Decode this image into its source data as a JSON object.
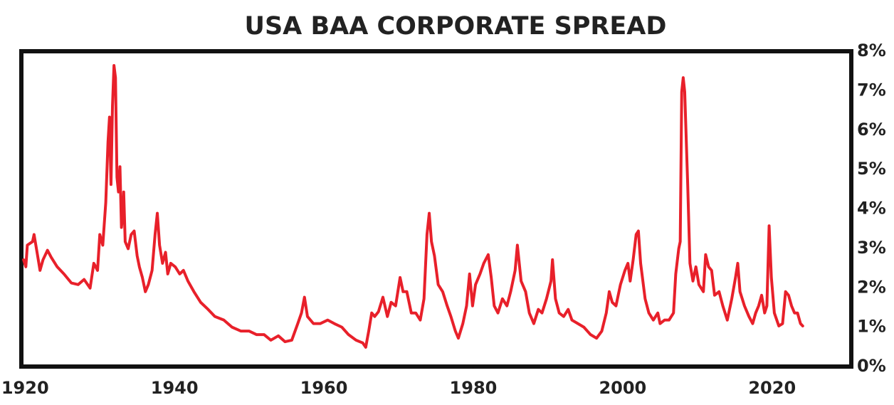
{
  "chart_data": {
    "type": "line",
    "title": "USA BAA CORPORATE SPREAD",
    "x": [
      1919.8,
      1920.1,
      1920.3,
      1921.0,
      1921.2,
      1921.6,
      1922.0,
      1922.4,
      1923.0,
      1923.5,
      1924.3,
      1925.2,
      1926.2,
      1927.1,
      1927.9,
      1928.7,
      1929.2,
      1929.7,
      1930.0,
      1930.4,
      1930.8,
      1931.1,
      1931.3,
      1931.5,
      1931.7,
      1931.9,
      1932.1,
      1932.3,
      1932.5,
      1932.7,
      1932.9,
      1933.1,
      1933.2,
      1933.4,
      1933.8,
      1934.2,
      1934.6,
      1935.0,
      1935.3,
      1935.7,
      1936.1,
      1936.5,
      1937.0,
      1937.4,
      1937.7,
      1938.0,
      1938.4,
      1938.8,
      1939.1,
      1939.5,
      1940.1,
      1940.7,
      1941.2,
      1941.8,
      1942.6,
      1943.5,
      1944.5,
      1945.4,
      1946.6,
      1947.7,
      1948.9,
      1950.0,
      1951.0,
      1952.0,
      1952.9,
      1953.9,
      1954.8,
      1955.7,
      1956.5,
      1957.0,
      1957.4,
      1957.8,
      1958.6,
      1959.5,
      1960.5,
      1961.4,
      1962.4,
      1963.3,
      1964.3,
      1965.2,
      1965.6,
      1966.0,
      1966.4,
      1966.8,
      1967.3,
      1967.9,
      1968.5,
      1969.0,
      1969.6,
      1970.2,
      1970.6,
      1971.1,
      1971.7,
      1972.3,
      1972.9,
      1973.4,
      1973.8,
      1974.1,
      1974.4,
      1974.8,
      1975.3,
      1975.9,
      1976.5,
      1977.0,
      1977.6,
      1978.0,
      1978.6,
      1979.1,
      1979.5,
      1979.9,
      1980.3,
      1980.9,
      1981.4,
      1982.0,
      1982.4,
      1982.8,
      1983.3,
      1983.9,
      1984.5,
      1985.0,
      1985.6,
      1985.9,
      1986.4,
      1987.0,
      1987.5,
      1988.1,
      1988.7,
      1989.2,
      1989.8,
      1990.4,
      1990.6,
      1991.0,
      1991.5,
      1992.1,
      1992.7,
      1993.2,
      1994.0,
      1994.8,
      1995.7,
      1996.5,
      1997.2,
      1997.8,
      1998.2,
      1998.6,
      1999.1,
      1999.7,
      2000.3,
      2000.7,
      2001.0,
      2001.4,
      2001.8,
      2002.1,
      2002.4,
      2003.0,
      2003.5,
      2004.1,
      2004.7,
      2005.0,
      2005.6,
      2006.2,
      2006.8,
      2007.1,
      2007.5,
      2007.7,
      2007.9,
      2008.1,
      2008.3,
      2008.7,
      2009.0,
      2009.4,
      2009.8,
      2010.2,
      2010.8,
      2011.1,
      2011.5,
      2011.9,
      2012.3,
      2012.9,
      2013.4,
      2014.0,
      2014.6,
      2015.1,
      2015.4,
      2015.7,
      2016.3,
      2016.9,
      2017.4,
      2017.8,
      2018.2,
      2018.6,
      2019.0,
      2019.3,
      2019.6,
      2019.9,
      2020.3,
      2020.9,
      2021.4,
      2021.8,
      2022.2,
      2022.6,
      2023.0,
      2023.4,
      2023.8,
      2024.1
    ],
    "values": [
      2.71,
      2.53,
      3.08,
      3.17,
      3.35,
      2.9,
      2.44,
      2.71,
      2.95,
      2.77,
      2.53,
      2.35,
      2.12,
      2.08,
      2.21,
      1.99,
      2.62,
      2.44,
      3.35,
      3.08,
      4.16,
      5.7,
      6.33,
      4.62,
      6.61,
      7.64,
      7.33,
      4.8,
      4.43,
      5.07,
      3.53,
      3.89,
      4.43,
      3.17,
      2.99,
      3.35,
      3.44,
      2.81,
      2.53,
      2.26,
      1.9,
      2.08,
      2.44,
      3.35,
      3.89,
      3.08,
      2.62,
      2.9,
      2.35,
      2.62,
      2.53,
      2.35,
      2.44,
      2.17,
      1.9,
      1.63,
      1.45,
      1.27,
      1.18,
      1.0,
      0.9,
      0.9,
      0.81,
      0.81,
      0.67,
      0.78,
      0.63,
      0.67,
      1.09,
      1.36,
      1.76,
      1.27,
      1.09,
      1.09,
      1.18,
      1.09,
      1.0,
      0.81,
      0.67,
      0.6,
      0.49,
      0.9,
      1.36,
      1.27,
      1.39,
      1.76,
      1.27,
      1.63,
      1.54,
      2.26,
      1.9,
      1.9,
      1.36,
      1.36,
      1.18,
      1.72,
      3.35,
      3.89,
      3.17,
      2.81,
      2.08,
      1.9,
      1.54,
      1.27,
      0.9,
      0.72,
      1.09,
      1.54,
      2.35,
      1.54,
      2.08,
      2.35,
      2.62,
      2.84,
      2.26,
      1.54,
      1.36,
      1.72,
      1.54,
      1.9,
      2.44,
      3.08,
      2.17,
      1.9,
      1.36,
      1.09,
      1.45,
      1.36,
      1.72,
      2.17,
      2.71,
      1.72,
      1.36,
      1.27,
      1.45,
      1.18,
      1.09,
      1.0,
      0.81,
      0.72,
      0.9,
      1.36,
      1.9,
      1.63,
      1.54,
      2.08,
      2.44,
      2.62,
      2.17,
      2.71,
      3.35,
      3.44,
      2.62,
      1.72,
      1.36,
      1.18,
      1.36,
      1.09,
      1.18,
      1.18,
      1.36,
      2.35,
      2.99,
      3.17,
      6.97,
      7.33,
      6.97,
      4.62,
      2.62,
      2.17,
      2.53,
      2.08,
      1.9,
      2.84,
      2.53,
      2.44,
      1.81,
      1.9,
      1.54,
      1.18,
      1.72,
      2.26,
      2.62,
      1.9,
      1.54,
      1.27,
      1.09,
      1.36,
      1.54,
      1.81,
      1.36,
      1.54,
      3.57,
      2.26,
      1.36,
      1.03,
      1.09,
      1.9,
      1.81,
      1.54,
      1.36,
      1.36,
      1.09,
      1.03
    ],
    "color": "#e8202a",
    "xlim": [
      1919.5,
      2030.6
    ],
    "xticks": [
      1920,
      1940,
      1960,
      1980,
      2000,
      2020
    ],
    "ylim": [
      0,
      8
    ],
    "yticks": [
      {
        "value": 0,
        "label": "0%"
      },
      {
        "value": 1,
        "label": "1%"
      },
      {
        "value": 2,
        "label": "2%"
      },
      {
        "value": 3,
        "label": "3%"
      },
      {
        "value": 4,
        "label": "4%"
      },
      {
        "value": 5,
        "label": "5%"
      },
      {
        "value": 6,
        "label": "6%"
      },
      {
        "value": 7,
        "label": "7%"
      },
      {
        "value": 8,
        "label": "8%"
      }
    ]
  }
}
